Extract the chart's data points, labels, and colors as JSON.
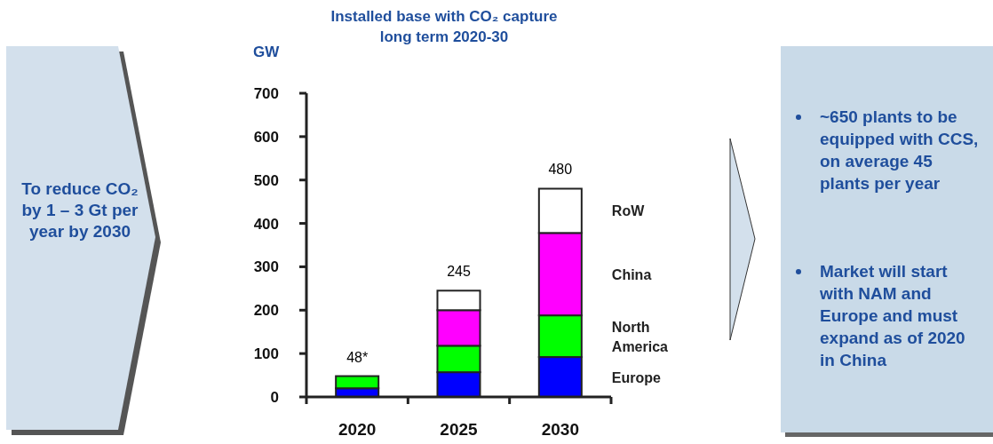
{
  "chart_data": {
    "type": "bar",
    "stacked": true,
    "title": "Installed base with CO₂ capture long term 2020-30",
    "ylabel": "GW",
    "categories": [
      "2020",
      "2025",
      "2030"
    ],
    "series": [
      {
        "name": "Europe",
        "color": "#0000ff",
        "values": [
          20,
          57,
          92
        ]
      },
      {
        "name": "North America",
        "color": "#00ff00",
        "values": [
          28,
          61,
          96
        ]
      },
      {
        "name": "China",
        "color": "#ff00ff",
        "values": [
          0,
          82,
          190
        ]
      },
      {
        "name": "RoW",
        "color": "#ffffff",
        "values": [
          0,
          45,
          102
        ]
      }
    ],
    "totals": [
      "48*",
      "245",
      "480"
    ],
    "ylim": [
      0,
      700
    ],
    "yticks": [
      0,
      100,
      200,
      300,
      400,
      500,
      600,
      700
    ],
    "grid": false,
    "legend": "right",
    "annotations": [
      "To reduce CO₂ by 1 – 3 Gt per year by 2030",
      "~650 plants to be equipped with CCS, on average 45 plants per year",
      "Market will start with NAM and Europe and must expand as of 2020 in China"
    ]
  }
}
